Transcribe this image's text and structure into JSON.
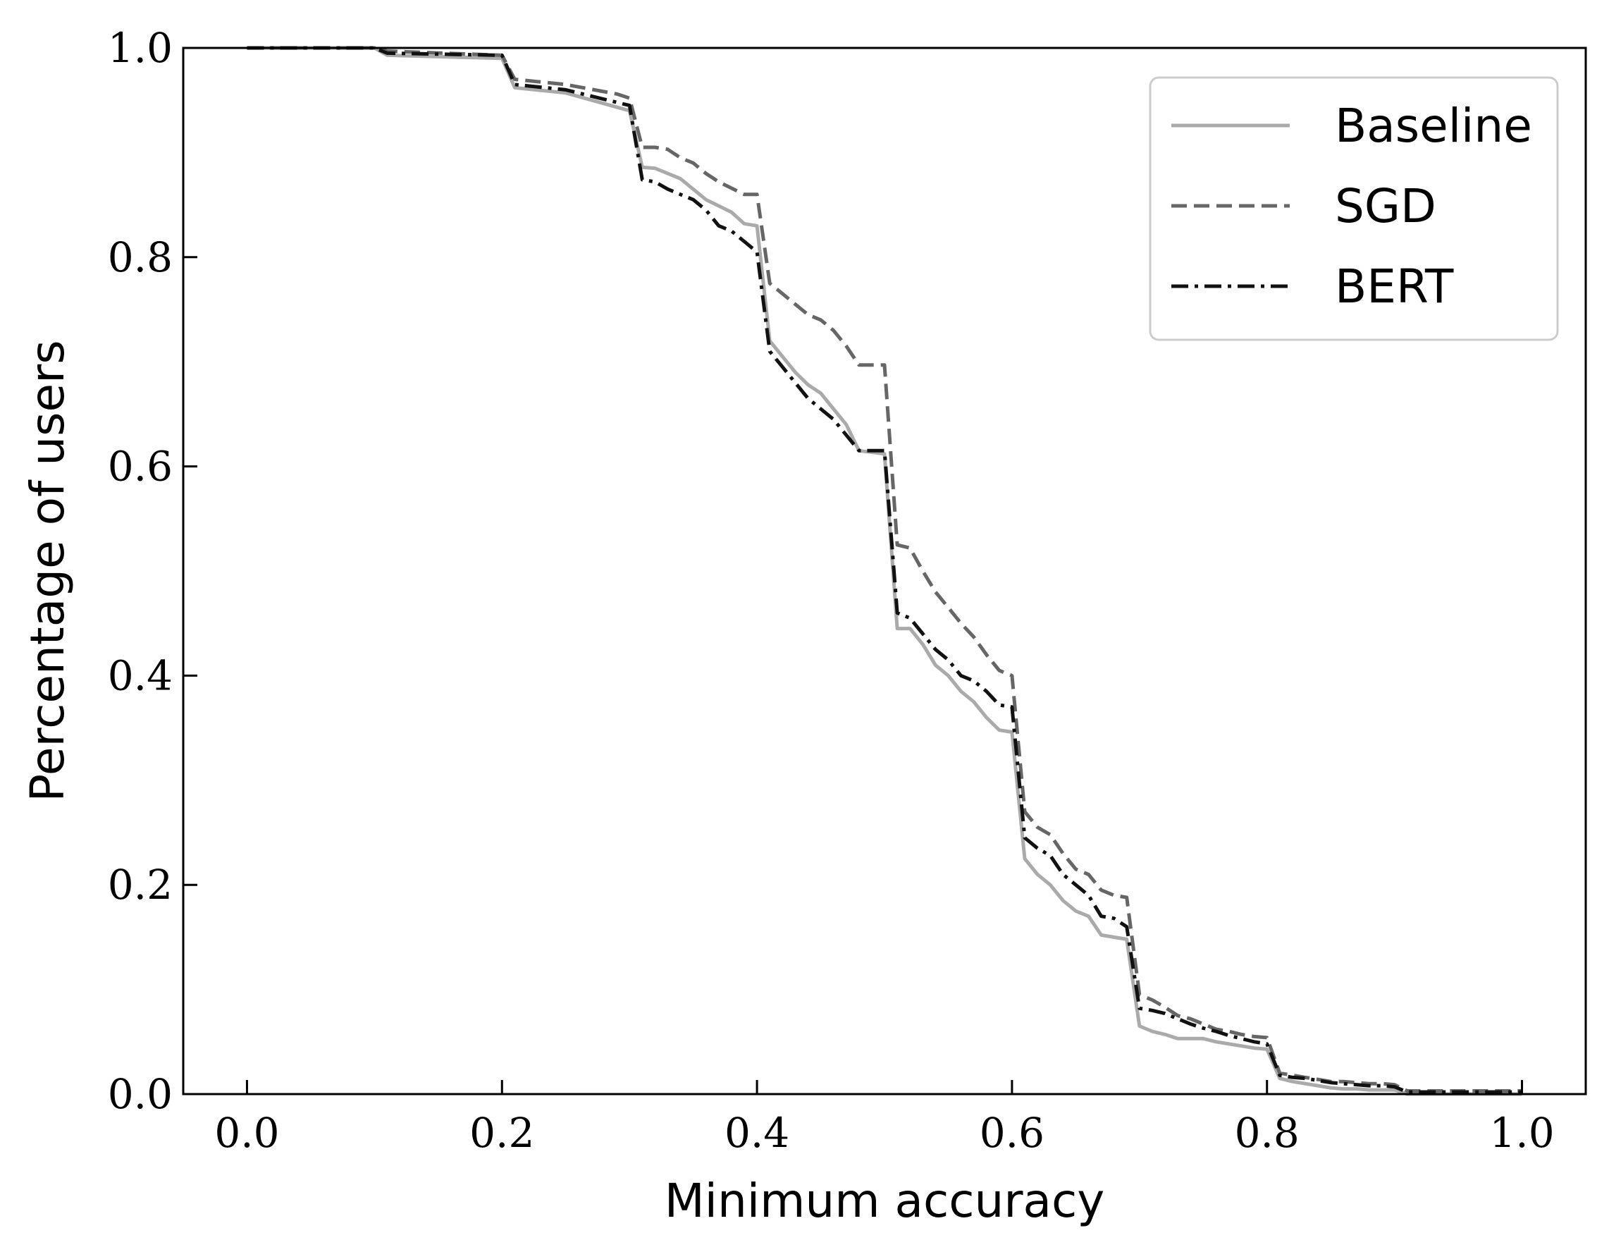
{
  "chart_data": {
    "type": "line",
    "title": "",
    "xlabel": "Minimum accuracy",
    "ylabel": "Percentage of users",
    "xlim": [
      -0.05,
      1.05
    ],
    "ylim": [
      0.0,
      1.0
    ],
    "xticks": [
      "0.0",
      "0.2",
      "0.4",
      "0.6",
      "0.8",
      "1.0"
    ],
    "yticks": [
      "0.0",
      "0.2",
      "0.4",
      "0.6",
      "0.8",
      "1.0"
    ],
    "grid": false,
    "legend_position": "top-right",
    "series": [
      {
        "name": "Baseline",
        "color": "#aaaaaa",
        "dash": "solid",
        "x": [
          0.0,
          0.1,
          0.11,
          0.2,
          0.21,
          0.25,
          0.3,
          0.31,
          0.32,
          0.34,
          0.36,
          0.38,
          0.39,
          0.4,
          0.41,
          0.42,
          0.43,
          0.44,
          0.45,
          0.46,
          0.47,
          0.48,
          0.5,
          0.51,
          0.52,
          0.53,
          0.54,
          0.55,
          0.56,
          0.57,
          0.58,
          0.59,
          0.6,
          0.61,
          0.62,
          0.63,
          0.64,
          0.65,
          0.66,
          0.67,
          0.68,
          0.69,
          0.7,
          0.71,
          0.72,
          0.73,
          0.74,
          0.75,
          0.76,
          0.77,
          0.78,
          0.79,
          0.8,
          0.81,
          0.82,
          0.83,
          0.84,
          0.85,
          0.86,
          0.87,
          0.88,
          0.89,
          0.9,
          0.91,
          1.0
        ],
        "y": [
          1.0,
          1.0,
          0.993,
          0.99,
          0.962,
          0.957,
          0.94,
          0.886,
          0.885,
          0.875,
          0.855,
          0.843,
          0.832,
          0.83,
          0.72,
          0.705,
          0.69,
          0.678,
          0.67,
          0.655,
          0.64,
          0.615,
          0.612,
          0.445,
          0.445,
          0.43,
          0.41,
          0.4,
          0.385,
          0.375,
          0.36,
          0.348,
          0.346,
          0.225,
          0.21,
          0.2,
          0.185,
          0.175,
          0.17,
          0.152,
          0.15,
          0.148,
          0.065,
          0.06,
          0.057,
          0.053,
          0.053,
          0.053,
          0.05,
          0.048,
          0.046,
          0.044,
          0.043,
          0.015,
          0.012,
          0.01,
          0.008,
          0.006,
          0.005,
          0.005,
          0.004,
          0.004,
          0.004,
          0.0,
          0.0
        ]
      },
      {
        "name": "SGD",
        "color": "#666666",
        "dash": "dashed",
        "x": [
          0.0,
          0.1,
          0.11,
          0.2,
          0.21,
          0.25,
          0.29,
          0.3,
          0.31,
          0.32,
          0.33,
          0.34,
          0.35,
          0.36,
          0.37,
          0.38,
          0.39,
          0.4,
          0.41,
          0.42,
          0.43,
          0.44,
          0.45,
          0.46,
          0.47,
          0.48,
          0.5,
          0.51,
          0.52,
          0.53,
          0.54,
          0.55,
          0.56,
          0.57,
          0.58,
          0.59,
          0.6,
          0.61,
          0.62,
          0.63,
          0.64,
          0.65,
          0.66,
          0.67,
          0.68,
          0.69,
          0.7,
          0.71,
          0.72,
          0.73,
          0.74,
          0.75,
          0.76,
          0.77,
          0.78,
          0.79,
          0.8,
          0.81,
          0.82,
          0.83,
          0.84,
          0.85,
          0.86,
          0.87,
          0.88,
          0.89,
          0.9,
          0.91,
          1.0
        ],
        "y": [
          1.0,
          1.0,
          0.997,
          0.993,
          0.97,
          0.965,
          0.956,
          0.952,
          0.905,
          0.905,
          0.903,
          0.895,
          0.89,
          0.88,
          0.872,
          0.866,
          0.86,
          0.86,
          0.775,
          0.765,
          0.755,
          0.745,
          0.74,
          0.73,
          0.715,
          0.697,
          0.697,
          0.525,
          0.522,
          0.5,
          0.48,
          0.465,
          0.45,
          0.437,
          0.42,
          0.405,
          0.4,
          0.27,
          0.255,
          0.248,
          0.23,
          0.215,
          0.21,
          0.195,
          0.19,
          0.188,
          0.095,
          0.09,
          0.083,
          0.075,
          0.072,
          0.067,
          0.062,
          0.06,
          0.057,
          0.055,
          0.054,
          0.02,
          0.018,
          0.016,
          0.014,
          0.012,
          0.012,
          0.011,
          0.01,
          0.01,
          0.009,
          0.003,
          0.003
        ]
      },
      {
        "name": "BERT",
        "color": "#111111",
        "dash": "dashdot",
        "x": [
          0.0,
          0.1,
          0.11,
          0.2,
          0.21,
          0.25,
          0.3,
          0.31,
          0.32,
          0.33,
          0.34,
          0.35,
          0.36,
          0.37,
          0.38,
          0.39,
          0.4,
          0.41,
          0.42,
          0.43,
          0.44,
          0.45,
          0.46,
          0.47,
          0.48,
          0.5,
          0.51,
          0.52,
          0.53,
          0.54,
          0.55,
          0.56,
          0.57,
          0.58,
          0.59,
          0.6,
          0.61,
          0.62,
          0.63,
          0.64,
          0.65,
          0.66,
          0.67,
          0.68,
          0.69,
          0.7,
          0.71,
          0.72,
          0.73,
          0.74,
          0.75,
          0.76,
          0.77,
          0.78,
          0.79,
          0.8,
          0.81,
          0.82,
          0.83,
          0.84,
          0.85,
          0.86,
          0.87,
          0.88,
          0.89,
          0.9,
          0.91,
          1.0
        ],
        "y": [
          1.0,
          1.0,
          0.995,
          0.993,
          0.965,
          0.96,
          0.945,
          0.874,
          0.872,
          0.865,
          0.86,
          0.855,
          0.845,
          0.83,
          0.825,
          0.815,
          0.805,
          0.71,
          0.695,
          0.68,
          0.665,
          0.655,
          0.645,
          0.63,
          0.615,
          0.615,
          0.46,
          0.455,
          0.44,
          0.425,
          0.415,
          0.4,
          0.395,
          0.385,
          0.372,
          0.37,
          0.245,
          0.235,
          0.228,
          0.21,
          0.2,
          0.19,
          0.17,
          0.168,
          0.16,
          0.082,
          0.08,
          0.077,
          0.072,
          0.067,
          0.063,
          0.06,
          0.056,
          0.053,
          0.05,
          0.048,
          0.018,
          0.016,
          0.015,
          0.013,
          0.011,
          0.01,
          0.009,
          0.008,
          0.008,
          0.007,
          0.002,
          0.002
        ]
      }
    ]
  }
}
